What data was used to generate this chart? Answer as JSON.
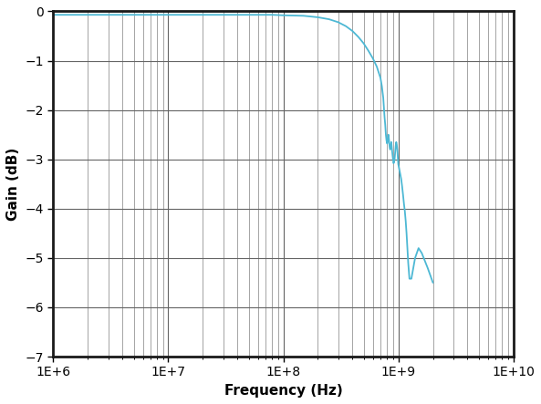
{
  "xlabel": "Frequency (Hz)",
  "ylabel": "Gain (dB)",
  "xlim": [
    1000000.0,
    10000000000.0
  ],
  "ylim": [
    -7,
    0
  ],
  "yticks": [
    0,
    -1,
    -2,
    -3,
    -4,
    -5,
    -6,
    -7
  ],
  "line_color": "#4db8d4",
  "background_color": "#ffffff",
  "grid_major_color": "#646464",
  "grid_minor_color": "#808080",
  "spine_color": "#1a1a1a",
  "curve_points": {
    "freq": [
      1000000.0,
      2000000.0,
      5000000.0,
      10000000.0,
      20000000.0,
      50000000.0,
      80000000.0,
      100000000.0,
      150000000.0,
      200000000.0,
      250000000.0,
      300000000.0,
      350000000.0,
      400000000.0,
      450000000.0,
      500000000.0,
      550000000.0,
      600000000.0,
      650000000.0,
      700000000.0,
      720000000.0,
      740000000.0,
      750000000.0,
      760000000.0,
      770000000.0,
      780000000.0,
      790000000.0,
      800000000.0,
      810000000.0,
      820000000.0,
      830000000.0,
      840000000.0,
      850000000.0,
      860000000.0,
      870000000.0,
      880000000.0,
      890000000.0,
      900000000.0,
      910000000.0,
      920000000.0,
      930000000.0,
      940000000.0,
      950000000.0,
      960000000.0,
      970000000.0,
      980000000.0,
      990000000.0,
      1000000000.0,
      1020000000.0,
      1040000000.0,
      1060000000.0,
      1080000000.0,
      1100000000.0,
      1120000000.0,
      1140000000.0,
      1160000000.0,
      1180000000.0,
      1200000000.0,
      1220000000.0,
      1250000000.0,
      1300000000.0,
      1400000000.0,
      1500000000.0,
      1600000000.0,
      1800000000.0,
      2000000000.0
    ],
    "gain": [
      -0.07,
      -0.07,
      -0.07,
      -0.07,
      -0.07,
      -0.07,
      -0.07,
      -0.08,
      -0.09,
      -0.12,
      -0.16,
      -0.22,
      -0.3,
      -0.4,
      -0.52,
      -0.65,
      -0.8,
      -0.95,
      -1.12,
      -1.35,
      -1.52,
      -1.75,
      -1.95,
      -2.15,
      -2.3,
      -2.5,
      -2.62,
      -2.68,
      -2.62,
      -2.5,
      -2.6,
      -2.75,
      -2.8,
      -2.72,
      -2.65,
      -2.78,
      -2.9,
      -3.0,
      -3.08,
      -3.05,
      -2.98,
      -2.85,
      -2.72,
      -2.65,
      -2.7,
      -2.8,
      -2.95,
      -3.1,
      -3.2,
      -3.3,
      -3.4,
      -3.55,
      -3.72,
      -3.9,
      -4.05,
      -4.25,
      -4.5,
      -4.8,
      -5.1,
      -5.42,
      -5.42,
      -5.0,
      -4.8,
      -4.9,
      -5.2,
      -5.5
    ]
  }
}
